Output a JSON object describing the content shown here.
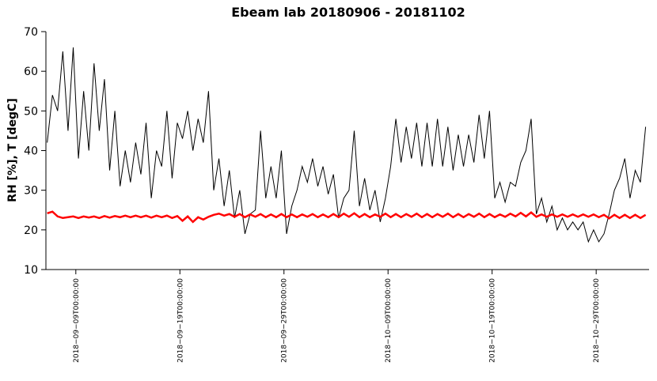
{
  "chart_data": {
    "type": "line",
    "title": "Ebeam lab 20180906 -  20181102",
    "ylabel": "RH [%], T [degC]",
    "xlim": [
      "2018-09-06T03:00:00",
      "2018-11-03T02:00:00"
    ],
    "ylim": [
      10,
      70
    ],
    "yticks": [
      10,
      20,
      30,
      40,
      50,
      60,
      70
    ],
    "xticks": [
      {
        "value": "2018-09-09T00:00:00",
        "label": "2018−09−09T00:00:00"
      },
      {
        "value": "2018-09-19T00:00:00",
        "label": "2018−09−19T00:00:00"
      },
      {
        "value": "2018-09-29T00:00:00",
        "label": "2018−09−29T00:00:00"
      },
      {
        "value": "2018-10-09T00:00:00",
        "label": "2018−10−09T00:00:00"
      },
      {
        "value": "2018-10-19T00:00:00",
        "label": "2018−10−19T00:00:00"
      },
      {
        "value": "2018-10-29T00:00:00",
        "label": "2018−10−29T00:00:00"
      }
    ],
    "x": [
      "2018-09-06T06:00:00",
      "2018-09-06T18:00:00",
      "2018-09-07T06:00:00",
      "2018-09-07T18:00:00",
      "2018-09-08T06:00:00",
      "2018-09-08T18:00:00",
      "2018-09-09T06:00:00",
      "2018-09-09T18:00:00",
      "2018-09-10T06:00:00",
      "2018-09-10T18:00:00",
      "2018-09-11T06:00:00",
      "2018-09-11T18:00:00",
      "2018-09-12T06:00:00",
      "2018-09-12T18:00:00",
      "2018-09-13T06:00:00",
      "2018-09-13T18:00:00",
      "2018-09-14T06:00:00",
      "2018-09-14T18:00:00",
      "2018-09-15T06:00:00",
      "2018-09-15T18:00:00",
      "2018-09-16T06:00:00",
      "2018-09-16T18:00:00",
      "2018-09-17T06:00:00",
      "2018-09-17T18:00:00",
      "2018-09-18T06:00:00",
      "2018-09-18T18:00:00",
      "2018-09-19T06:00:00",
      "2018-09-19T18:00:00",
      "2018-09-20T06:00:00",
      "2018-09-20T18:00:00",
      "2018-09-21T06:00:00",
      "2018-09-21T18:00:00",
      "2018-09-22T06:00:00",
      "2018-09-22T18:00:00",
      "2018-09-23T06:00:00",
      "2018-09-23T18:00:00",
      "2018-09-24T06:00:00",
      "2018-09-24T18:00:00",
      "2018-09-25T06:00:00",
      "2018-09-25T18:00:00",
      "2018-09-26T06:00:00",
      "2018-09-26T18:00:00",
      "2018-09-27T06:00:00",
      "2018-09-27T18:00:00",
      "2018-09-28T06:00:00",
      "2018-09-28T18:00:00",
      "2018-09-29T06:00:00",
      "2018-09-29T18:00:00",
      "2018-09-30T06:00:00",
      "2018-09-30T18:00:00",
      "2018-10-01T06:00:00",
      "2018-10-01T18:00:00",
      "2018-10-02T06:00:00",
      "2018-10-02T18:00:00",
      "2018-10-03T06:00:00",
      "2018-10-03T18:00:00",
      "2018-10-04T06:00:00",
      "2018-10-04T18:00:00",
      "2018-10-05T06:00:00",
      "2018-10-05T18:00:00",
      "2018-10-06T06:00:00",
      "2018-10-06T18:00:00",
      "2018-10-07T06:00:00",
      "2018-10-07T18:00:00",
      "2018-10-08T06:00:00",
      "2018-10-08T18:00:00",
      "2018-10-09T06:00:00",
      "2018-10-09T18:00:00",
      "2018-10-10T06:00:00",
      "2018-10-10T18:00:00",
      "2018-10-11T06:00:00",
      "2018-10-11T18:00:00",
      "2018-10-12T06:00:00",
      "2018-10-12T18:00:00",
      "2018-10-13T06:00:00",
      "2018-10-13T18:00:00",
      "2018-10-14T06:00:00",
      "2018-10-14T18:00:00",
      "2018-10-15T06:00:00",
      "2018-10-15T18:00:00",
      "2018-10-16T06:00:00",
      "2018-10-16T18:00:00",
      "2018-10-17T06:00:00",
      "2018-10-17T18:00:00",
      "2018-10-18T06:00:00",
      "2018-10-18T18:00:00",
      "2018-10-19T06:00:00",
      "2018-10-19T18:00:00",
      "2018-10-20T06:00:00",
      "2018-10-20T18:00:00",
      "2018-10-21T06:00:00",
      "2018-10-21T18:00:00",
      "2018-10-22T06:00:00",
      "2018-10-22T18:00:00",
      "2018-10-23T06:00:00",
      "2018-10-23T18:00:00",
      "2018-10-24T06:00:00",
      "2018-10-24T18:00:00",
      "2018-10-25T06:00:00",
      "2018-10-25T18:00:00",
      "2018-10-26T06:00:00",
      "2018-10-26T18:00:00",
      "2018-10-27T06:00:00",
      "2018-10-27T18:00:00",
      "2018-10-28T06:00:00",
      "2018-10-28T18:00:00",
      "2018-10-29T06:00:00",
      "2018-10-29T18:00:00",
      "2018-10-30T06:00:00",
      "2018-10-30T18:00:00",
      "2018-10-31T06:00:00",
      "2018-10-31T18:00:00",
      "2018-11-01T06:00:00",
      "2018-11-01T18:00:00",
      "2018-11-02T06:00:00",
      "2018-11-02T18:00:00"
    ],
    "series": [
      {
        "color": "#000000",
        "values": [
          42,
          54,
          50,
          65,
          45,
          66,
          38,
          55,
          40,
          62,
          45,
          58,
          35,
          50,
          31,
          40,
          32,
          42,
          34,
          47,
          28,
          40,
          36,
          50,
          33,
          47,
          43,
          50,
          40,
          48,
          42,
          55,
          30,
          38,
          26,
          35,
          23,
          30,
          19,
          24,
          25,
          45,
          28,
          36,
          28,
          40,
          19,
          26,
          30,
          36,
          32,
          38,
          31,
          36,
          29,
          34,
          23,
          28,
          30,
          45,
          26,
          33,
          25,
          30,
          22,
          28,
          36,
          48,
          37,
          46,
          38,
          47,
          36,
          47,
          36,
          48,
          36,
          46,
          35,
          44,
          36,
          44,
          37,
          49,
          38,
          50,
          28,
          32,
          27,
          32,
          31,
          37,
          40,
          48,
          24,
          28,
          22,
          26,
          20,
          23,
          20,
          22,
          20,
          22,
          17,
          20,
          17,
          19,
          24,
          30,
          33,
          38,
          28,
          35,
          32,
          46
        ]
      },
      {
        "color": "#ff0000",
        "values": [
          24.2,
          24.6,
          23.4,
          23.0,
          23.2,
          23.4,
          23.0,
          23.4,
          23.1,
          23.4,
          23.0,
          23.5,
          23.1,
          23.5,
          23.2,
          23.6,
          23.2,
          23.6,
          23.2,
          23.6,
          23.1,
          23.6,
          23.2,
          23.6,
          23.0,
          23.5,
          22.3,
          23.4,
          22.0,
          23.2,
          22.6,
          23.3,
          23.8,
          24.1,
          23.6,
          24.0,
          23.3,
          24.0,
          23.2,
          23.9,
          23.3,
          24.0,
          23.2,
          23.9,
          23.2,
          24.0,
          23.2,
          23.9,
          23.2,
          23.9,
          23.3,
          24.0,
          23.2,
          23.9,
          23.2,
          24.0,
          23.2,
          24.1,
          23.3,
          24.2,
          23.2,
          24.0,
          23.2,
          23.9,
          23.3,
          24.1,
          23.2,
          24.0,
          23.2,
          24.0,
          23.3,
          24.1,
          23.2,
          24.0,
          23.2,
          24.0,
          23.3,
          24.1,
          23.2,
          24.0,
          23.2,
          24.0,
          23.3,
          24.1,
          23.2,
          24.0,
          23.2,
          23.9,
          23.3,
          24.1,
          23.4,
          24.3,
          23.4,
          24.4,
          23.3,
          23.9,
          23.3,
          23.9,
          23.3,
          23.9,
          23.3,
          23.9,
          23.3,
          23.9,
          23.3,
          23.9,
          23.2,
          23.8,
          22.9,
          23.8,
          23.0,
          23.8,
          23.0,
          23.8,
          23.0,
          23.8
        ]
      }
    ]
  }
}
